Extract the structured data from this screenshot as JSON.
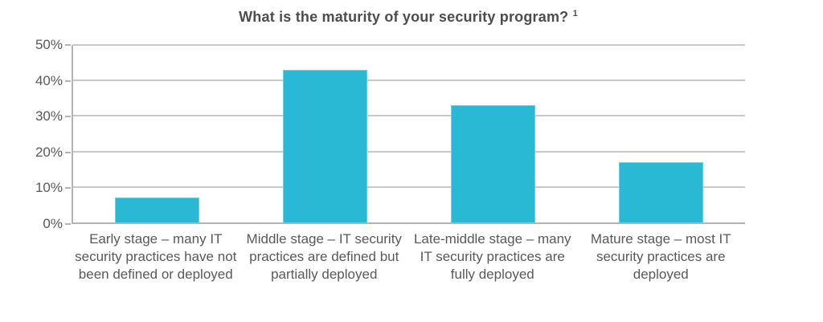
{
  "title": {
    "text": "What is the maturity of your security program?",
    "superscript": "1"
  },
  "colors": {
    "bar_fill": "#29b9d4",
    "bar_edge": "#6fd2e3",
    "gridline": "#c9c9c9",
    "axis_line": "#b3b3b3",
    "title_text": "#4d4d4d",
    "label_text": "#595959",
    "background": "#ffffff"
  },
  "chart_data": {
    "type": "bar",
    "title": "What is the maturity of your security program? 1",
    "categories": [
      "Early stage – many IT security practices have not been defined or deployed",
      "Middle stage – IT security practices are defined but partially deployed",
      "Late-middle stage – many IT security practices are fully deployed",
      "Mature stage – most IT security practices are deployed"
    ],
    "values": [
      7,
      43,
      33,
      17
    ],
    "xlabel": "",
    "ylabel": "",
    "ylim": [
      0,
      50
    ],
    "yticks": [
      "0%",
      "10%",
      "20%",
      "30%",
      "40%",
      "50%"
    ],
    "grid": true,
    "legend": false,
    "bar_color": "#29b9d4"
  }
}
